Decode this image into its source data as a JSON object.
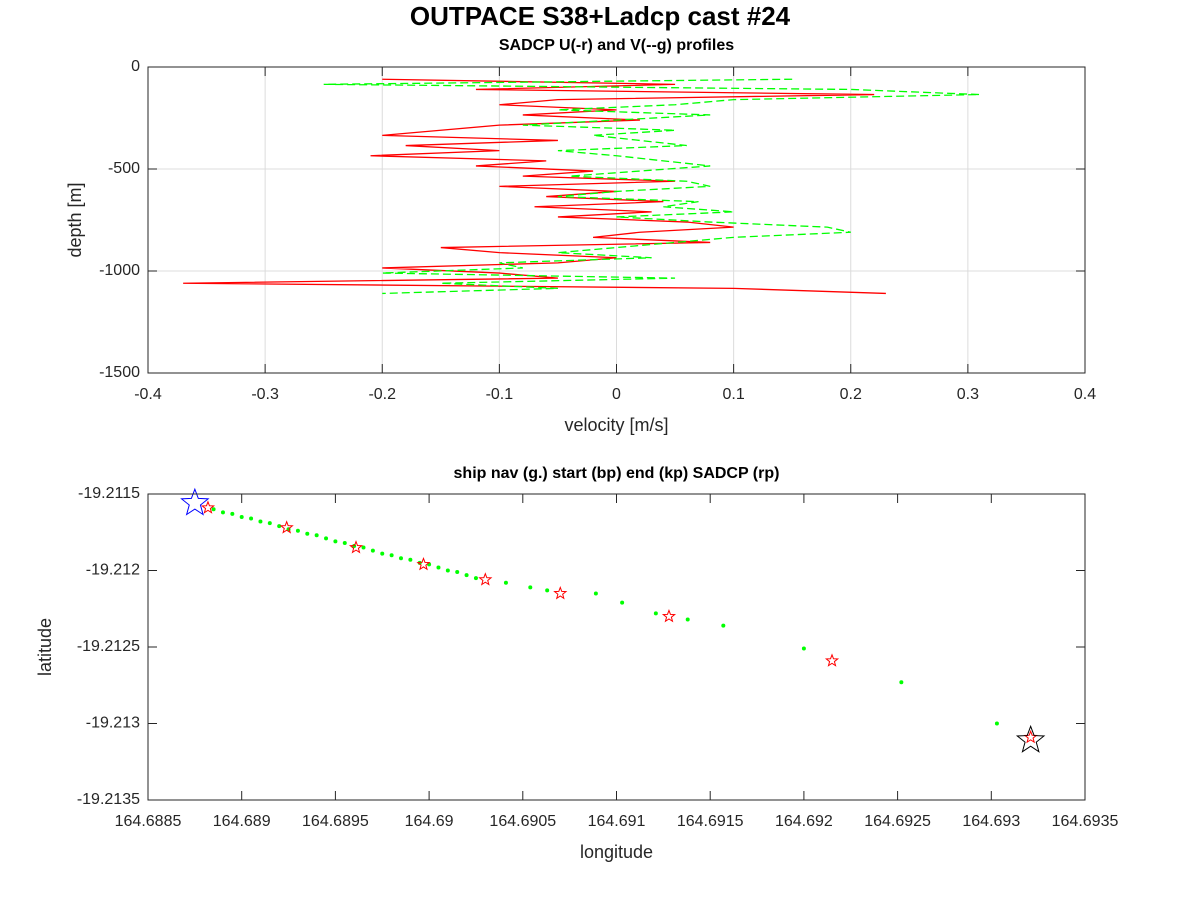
{
  "title": "OUTPACE S38+Ladcp cast #24",
  "chart_data": [
    {
      "type": "profile",
      "title": "SADCP U(-r) and V(--g) profiles",
      "xlabel": "velocity [m/s]",
      "ylabel": "depth [m]",
      "xlim": [
        -0.4,
        0.4
      ],
      "xticks": [
        -0.4,
        -0.3,
        -0.2,
        -0.1,
        0,
        0.1,
        0.2,
        0.3,
        0.4
      ],
      "ylim": [
        -1500,
        0
      ],
      "yticks": [
        -1500,
        -1000,
        -500,
        0
      ],
      "grid": true,
      "depth": [
        -60,
        -85,
        -110,
        -135,
        -160,
        -185,
        -210,
        -235,
        -260,
        -285,
        -310,
        -335,
        -360,
        -385,
        -410,
        -435,
        -460,
        -485,
        -510,
        -535,
        -560,
        -585,
        -610,
        -635,
        -660,
        -685,
        -710,
        -735,
        -760,
        -785,
        -810,
        -835,
        -860,
        -885,
        -910,
        -935,
        -960,
        -985,
        -1010,
        -1035,
        -1060,
        -1085,
        -1110
      ],
      "series": [
        {
          "color": "#ff0000",
          "dashed": false,
          "values": [
            -0.2,
            0.05,
            -0.12,
            0.22,
            -0.05,
            -0.1,
            0.0,
            -0.08,
            0.02,
            -0.1,
            -0.15,
            -0.2,
            -0.05,
            -0.18,
            -0.1,
            -0.21,
            -0.06,
            -0.12,
            -0.02,
            -0.08,
            0.05,
            -0.1,
            0.0,
            -0.06,
            0.04,
            -0.07,
            0.03,
            -0.05,
            0.06,
            0.1,
            0.02,
            -0.02,
            0.08,
            -0.15,
            -0.1,
            0.0,
            -0.05,
            -0.2,
            -0.1,
            -0.05,
            -0.37,
            0.1,
            0.23
          ]
        },
        {
          "color": "#00ff00",
          "dashed": true,
          "values": [
            0.15,
            -0.25,
            0.2,
            0.31,
            0.1,
            0.05,
            -0.05,
            0.08,
            0.0,
            -0.08,
            0.05,
            -0.02,
            0.02,
            0.06,
            -0.05,
            0.0,
            0.04,
            0.08,
            0.02,
            -0.04,
            0.06,
            0.08,
            0.0,
            -0.05,
            0.07,
            0.04,
            0.1,
            0.0,
            0.08,
            0.18,
            0.2,
            0.1,
            0.05,
            0.0,
            -0.05,
            0.03,
            -0.1,
            -0.08,
            -0.2,
            0.05,
            -0.15,
            -0.05,
            -0.2
          ]
        }
      ]
    },
    {
      "type": "scatter",
      "title": "ship nav (g.) start (bp) end (kp) SADCP (rp)",
      "xlabel": "longitude",
      "ylabel": "latitude",
      "xlim": [
        164.6885,
        164.6935
      ],
      "xticks": [
        164.6885,
        164.689,
        164.6895,
        164.69,
        164.6905,
        164.691,
        164.6915,
        164.692,
        164.6925,
        164.693,
        164.6935
      ],
      "ylim": [
        -19.2135,
        -19.2115
      ],
      "yticks": [
        -19.2135,
        -19.213,
        -19.2125,
        -19.212,
        -19.2115
      ],
      "grid": false,
      "series": [
        {
          "color": "#00ff00",
          "marker": "dot",
          "x": [
            164.68885,
            164.6889,
            164.68895,
            164.689,
            164.68905,
            164.6891,
            164.68915,
            164.6892,
            164.68925,
            164.6893,
            164.68935,
            164.6894,
            164.68945,
            164.6895,
            164.68955,
            164.6896,
            164.68965,
            164.6897,
            164.68975,
            164.6898,
            164.68985,
            164.6899,
            164.68995,
            164.69,
            164.69005,
            164.6901,
            164.69015,
            164.6902,
            164.69025,
            164.69041,
            164.69054,
            164.69063,
            164.69089,
            164.69103,
            164.69121,
            164.69138,
            164.69157,
            164.692,
            164.69252,
            164.69303
          ],
          "values": [
            -19.2116,
            -19.21162,
            -19.21163,
            -19.21165,
            -19.21166,
            -19.21168,
            -19.21169,
            -19.21171,
            -19.21173,
            -19.21174,
            -19.21176,
            -19.21177,
            -19.21179,
            -19.21181,
            -19.21182,
            -19.21184,
            -19.21185,
            -19.21187,
            -19.21189,
            -19.2119,
            -19.21192,
            -19.21193,
            -19.21195,
            -19.21196,
            -19.21198,
            -19.212,
            -19.21201,
            -19.21203,
            -19.21205,
            -19.21208,
            -19.21211,
            -19.21213,
            -19.21215,
            -19.21221,
            -19.21228,
            -19.21232,
            -19.21236,
            -19.21251,
            -19.21273,
            -19.213
          ]
        },
        {
          "color": "#ff0000",
          "marker": "star",
          "x": [
            164.68882,
            164.68924,
            164.68961,
            164.68997,
            164.6903,
            164.6907,
            164.69128,
            164.69215,
            164.69321
          ],
          "values": [
            -19.21159,
            -19.21172,
            -19.21185,
            -19.21196,
            -19.21206,
            -19.21215,
            -19.2123,
            -19.21259,
            -19.21309
          ]
        },
        {
          "color": "#0000ff",
          "marker": "star-large",
          "x": [
            164.68875
          ],
          "values": [
            -19.21156
          ]
        },
        {
          "color": "#000000",
          "marker": "star-large",
          "x": [
            164.69321
          ],
          "values": [
            -19.21311
          ]
        }
      ]
    }
  ]
}
